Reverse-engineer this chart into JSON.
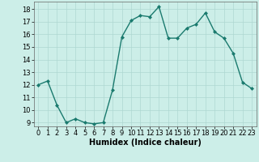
{
  "x": [
    0,
    1,
    2,
    3,
    4,
    5,
    6,
    7,
    8,
    9,
    10,
    11,
    12,
    13,
    14,
    15,
    16,
    17,
    18,
    19,
    20,
    21,
    22,
    23
  ],
  "y": [
    12,
    12.3,
    10.4,
    9.0,
    9.3,
    9.0,
    8.9,
    9.0,
    11.6,
    15.8,
    17.1,
    17.5,
    17.4,
    18.2,
    15.7,
    15.7,
    16.5,
    16.8,
    17.7,
    16.2,
    15.7,
    14.5,
    12.2,
    11.7
  ],
  "line_color": "#1a7a6e",
  "marker": "D",
  "markersize": 2.0,
  "linewidth": 1.0,
  "xlabel": "Humidex (Indice chaleur)",
  "xlim": [
    -0.5,
    23.5
  ],
  "ylim": [
    8.7,
    18.6
  ],
  "yticks": [
    9,
    10,
    11,
    12,
    13,
    14,
    15,
    16,
    17,
    18
  ],
  "xticks": [
    0,
    1,
    2,
    3,
    4,
    5,
    6,
    7,
    8,
    9,
    10,
    11,
    12,
    13,
    14,
    15,
    16,
    17,
    18,
    19,
    20,
    21,
    22,
    23
  ],
  "bg_color": "#cceee8",
  "grid_color": "#aed8d2",
  "tick_fontsize": 6,
  "xlabel_fontsize": 7
}
